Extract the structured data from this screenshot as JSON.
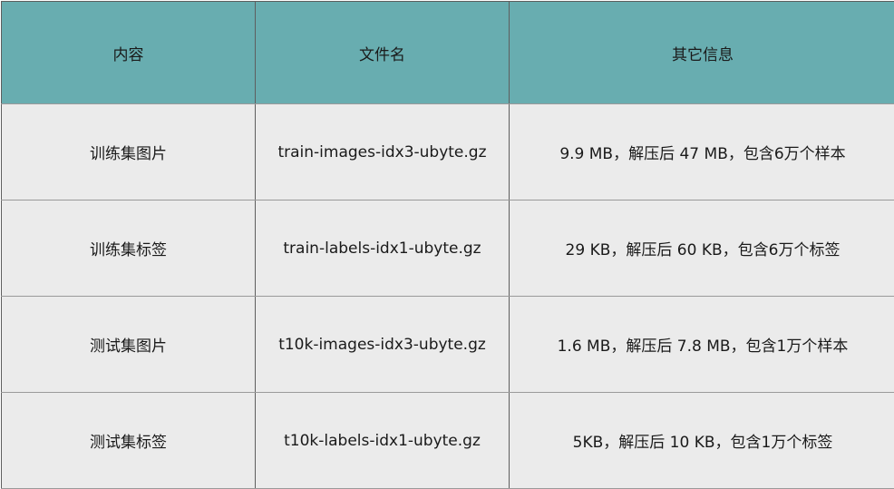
{
  "table": {
    "headers": [
      "内容",
      "文件名",
      "其它信息"
    ],
    "rows": [
      [
        "训练集图片",
        "train-images-idx3-ubyte.gz",
        "9.9 MB，解压后 47 MB，包含6万个样本"
      ],
      [
        "训练集标签",
        "train-labels-idx1-ubyte.gz",
        "29 KB，解压后 60 KB，包含6万个标签"
      ],
      [
        "测试集图片",
        "t10k-images-idx3-ubyte.gz",
        "1.6 MB，解压后 7.8 MB，包含1万个样本"
      ],
      [
        "测试集标签",
        "t10k-labels-idx1-ubyte.gz",
        "5KB，解压后 10 KB，包含1万个标签"
      ]
    ]
  },
  "colors": {
    "header_bg": "#68adb0",
    "row_bg": "#ebebeb"
  }
}
